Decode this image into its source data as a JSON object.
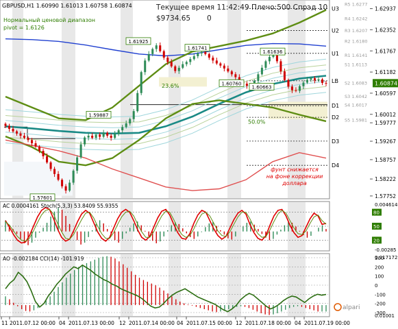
{
  "header": {
    "symbol_line": "GBPUSD,H1  1.60990 1.61013 1.60758 1.60874",
    "range_label": "Нормальный ценовой диапазон",
    "pivot_label": "pivot = 1.6126",
    "server_info": "Текущее время 11:42:49 Плечо:500 Спрэд 10",
    "balance": "$9734.65",
    "zero": "0"
  },
  "colors": {
    "bull_candle": "#2e8b57",
    "bear_candle": "#d00000",
    "ma_blue": "#2040d0",
    "ma_teal": "#1a8a86",
    "ma_olive": "#5e8d13",
    "ma_red": "#e05050",
    "band_light": "#9fd6dc",
    "band_olive_light": "#b8d29a",
    "current_price_bg": "#2e7d00",
    "zone_fill": "#f3f0d2",
    "annotation_red": "#e00000",
    "stoch_main": "#e00000",
    "stoch_signal": "#5e8d13",
    "cci_line": "#2c6e12",
    "hist_up": "#2e8b57",
    "hist_down": "#d00000"
  },
  "chart_data": [
    {
      "type": "candlestick",
      "symbol": "GBPUSD",
      "timeframe": "H1",
      "ohlc": {
        "open": 1.6099,
        "high": 1.61013,
        "low": 1.60758,
        "close": 1.60874
      },
      "price_axis": {
        "ticks": [
          "1.62937",
          "1.62352",
          "1.61767",
          "1.61182",
          "1.60874",
          "1.60597",
          "1.60012",
          "1.59777",
          "1.59267",
          "1.58757",
          "1.58222",
          "1.57752"
        ],
        "current_price": "1.60874"
      },
      "ylim": [
        1.5775,
        1.631
      ],
      "pivot_levels": [
        {
          "label": "U3",
          "price": 1.6294
        },
        {
          "label": "U2",
          "price": 1.6233
        },
        {
          "label": "U1",
          "price": 1.617
        },
        {
          "label": "LB",
          "price": 1.6094
        },
        {
          "label": "D1",
          "price": 1.6025
        },
        {
          "label": "D2",
          "price": 1.5993
        },
        {
          "label": "D3",
          "price": 1.5927
        },
        {
          "label": "D4",
          "price": 1.586
        }
      ],
      "pivot_point_labels": [
        {
          "label": "R5 1.6277",
          "price": 1.6305
        },
        {
          "label": "R4 1.6242",
          "price": 1.6265
        },
        {
          "label": "R3 1.6207",
          "price": 1.6232
        },
        {
          "label": "R2 1.6180",
          "price": 1.6203
        },
        {
          "label": "R1 1.6141",
          "price": 1.6164
        },
        {
          "label": "S1 1.6113",
          "price": 1.6138
        },
        {
          "label": "S2 1.6083",
          "price": 1.6087
        },
        {
          "label": "S3 1.6042",
          "price": 1.605
        },
        {
          "label": "S4 1.6017",
          "price": 1.6026
        },
        {
          "label": "S5 1.5981",
          "price": 1.5985
        }
      ],
      "price_labels": [
        {
          "text": "1.61925",
          "price": 1.61925
        },
        {
          "text": "1.61741",
          "price": 1.61741
        },
        {
          "text": "1.61636",
          "price": 1.61636
        },
        {
          "text": "1.60760",
          "price": 1.6076
        },
        {
          "text": "1.60663",
          "price": 1.60663
        },
        {
          "text": "1.59887",
          "price": 1.59887
        },
        {
          "text": "1.57601",
          "price": 1.57601
        }
      ],
      "fib_labels": [
        {
          "text": "23.6%",
          "price": 1.609
        },
        {
          "text": "50.0%",
          "price": 1.599
        }
      ],
      "annotation": [
        "фунт снижается",
        "на фоне коррекции",
        "доллара"
      ],
      "closes": [
        1.5969,
        1.5961,
        1.5954,
        1.5948,
        1.5942,
        1.5936,
        1.593,
        1.5921,
        1.5912,
        1.59,
        1.5885,
        1.5868,
        1.585,
        1.5836,
        1.582,
        1.5802,
        1.579,
        1.5812,
        1.5845,
        1.5882,
        1.5918,
        1.5937,
        1.5942,
        1.5936,
        1.5945,
        1.5939,
        1.595,
        1.5942,
        1.5936,
        1.5947,
        1.5957,
        1.5966,
        1.5976,
        1.5988,
        1.601,
        1.606,
        1.6118,
        1.615,
        1.6168,
        1.6182,
        1.6192,
        1.6176,
        1.6158,
        1.6146,
        1.6134,
        1.6121,
        1.613,
        1.614,
        1.6146,
        1.6154,
        1.6162,
        1.617,
        1.6174,
        1.6168,
        1.6158,
        1.615,
        1.6142,
        1.6136,
        1.6128,
        1.612,
        1.6112,
        1.6104,
        1.6093,
        1.6086,
        1.608,
        1.6076,
        1.6094,
        1.6112,
        1.613,
        1.6148,
        1.616,
        1.6164,
        1.6148,
        1.612,
        1.6096,
        1.6078,
        1.6068,
        1.6066,
        1.6079,
        1.6089,
        1.6097,
        1.6101,
        1.6095,
        1.6098,
        1.6088,
        1.6087
      ],
      "moving_averages": [
        {
          "color": "ma_blue",
          "values": [
            1.621,
            1.6208,
            1.6203,
            1.6193,
            1.618,
            1.6168,
            1.6163,
            1.6168,
            1.618,
            1.6192,
            1.6197,
            1.6196,
            1.619
          ]
        },
        {
          "color": "ma_teal",
          "values": [
            1.5968,
            1.5962,
            1.5955,
            1.595,
            1.5948,
            1.595,
            1.5968,
            1.5995,
            1.603,
            1.6062,
            1.6085,
            1.61,
            1.6108
          ]
        },
        {
          "color": "ma_olive",
          "values": [
            1.605,
            1.602,
            1.599,
            1.5985,
            1.602,
            1.608,
            1.614,
            1.6175,
            1.619,
            1.6205,
            1.6225,
            1.6255,
            1.629
          ]
        },
        {
          "color": "ma_olive",
          "values": [
            1.594,
            1.591,
            1.587,
            1.586,
            1.588,
            1.593,
            1.599,
            1.603,
            1.604,
            1.603,
            1.602,
            1.6,
            1.5982
          ]
        },
        {
          "color": "ma_red",
          "values": [
            1.593,
            1.5915,
            1.59,
            1.588,
            1.585,
            1.5825,
            1.58,
            1.579,
            1.5795,
            1.582,
            1.587,
            1.5895,
            1.588
          ]
        }
      ]
    },
    {
      "type": "oscillator",
      "header": "AC 0.0004161  Stoch(5,3,3) 53.8409 55.9355",
      "axis_labels": [
        "0.004614",
        "80",
        "50",
        "20",
        "-0.00285"
      ],
      "levels": [
        80,
        50,
        20
      ],
      "ac_values": [
        0.0018,
        0.0011,
        0.0004,
        -0.0004,
        -0.0012,
        -0.0019,
        -0.0022,
        -0.0018,
        -0.001,
        -0.0002,
        0.0006,
        0.0014,
        0.0024,
        0.0032,
        0.0038,
        0.0035,
        0.0025,
        0.0012,
        -0.0002,
        -0.0014,
        -0.0021,
        -0.0018,
        -0.0009,
        0.0002,
        0.0012,
        0.0018,
        0.0013,
        0.0004,
        -0.0006,
        -0.0014,
        -0.0018,
        -0.0012,
        -0.0003,
        0.0006,
        0.0013,
        0.0016,
        0.001,
        0.0001,
        -0.0008,
        -0.0015,
        -0.0019,
        -0.0016,
        -0.0008,
        0.0002,
        0.001,
        0.0015,
        0.0012,
        0.0005,
        -0.0003,
        -0.0009,
        -0.0012,
        -0.0008,
        -0.0001,
        0.0007,
        0.0013,
        0.0015,
        0.0009,
        0.0002,
        -0.0005,
        -0.0011,
        -0.0013,
        -0.0008,
        0.0,
        0.0008,
        0.0014,
        0.0016,
        0.0011,
        0.0004,
        -0.0004,
        -0.001,
        -0.0014,
        -0.0012,
        -0.0005,
        0.0003,
        0.001,
        0.0015,
        0.0014,
        0.0008,
        0.0001,
        -0.0006,
        -0.001,
        -0.0007,
        0.0,
        0.0006,
        0.001,
        0.0004
      ],
      "stoch_main": [
        62,
        48,
        32,
        20,
        14,
        16,
        30,
        50,
        70,
        84,
        90,
        86,
        66,
        44,
        26,
        18,
        22,
        40,
        60,
        76,
        84,
        78,
        58,
        38,
        24,
        18,
        26,
        46,
        66,
        80,
        86,
        80,
        62,
        42,
        26,
        20,
        28,
        48,
        68,
        82,
        86,
        74,
        54,
        36,
        24,
        22,
        34,
        56,
        74,
        84,
        80,
        62,
        44,
        30,
        22,
        28,
        46,
        64,
        78,
        84,
        76,
        54,
        36,
        24,
        20,
        30,
        52,
        72,
        84,
        86,
        72,
        52,
        36,
        26,
        30,
        48,
        66,
        78,
        72,
        54,
        56
      ],
      "stoch_signal": [
        60,
        52,
        40,
        28,
        20,
        18,
        24,
        40,
        58,
        74,
        84,
        86,
        76,
        56,
        38,
        24,
        22,
        32,
        48,
        64,
        78,
        80,
        68,
        50,
        34,
        24,
        24,
        36,
        54,
        70,
        80,
        82,
        72,
        54,
        38,
        26,
        26,
        38,
        56,
        72,
        82,
        80,
        64,
        46,
        32,
        26,
        30,
        44,
        62,
        76,
        80,
        72,
        56,
        40,
        30,
        28,
        38,
        54,
        70,
        80,
        80,
        66,
        48,
        34,
        26,
        28,
        42,
        60,
        76,
        84,
        78,
        62,
        46,
        34,
        32,
        40,
        56,
        70,
        74,
        62,
        54
      ]
    },
    {
      "type": "oscillator",
      "header": "AO -0.002184  CCI(14) -101.919",
      "axis_labels": [
        "0.017172",
        "300",
        "200",
        "100",
        "0",
        "-100",
        "-200",
        "-300",
        "0.01001"
      ],
      "levels": [
        300,
        200,
        100,
        0,
        -100,
        -200,
        -300
      ],
      "ao_values": [
        0.003,
        0.002,
        0.0008,
        -0.0004,
        -0.0014,
        -0.002,
        -0.0022,
        -0.0018,
        -0.001,
        0.0002,
        0.0016,
        0.003,
        0.0046,
        0.0062,
        0.0078,
        0.0094,
        0.0108,
        0.012,
        0.013,
        0.0138,
        0.0144,
        0.015,
        0.0156,
        0.0162,
        0.0166,
        0.0168,
        0.0166,
        0.016,
        0.015,
        0.014,
        0.0128,
        0.0116,
        0.0104,
        0.0094,
        0.0086,
        0.008,
        0.0074,
        0.0068,
        0.006,
        0.005,
        0.004,
        0.003,
        0.002,
        0.0012,
        0.0006,
        0.0002,
        -0.0002,
        -0.0006,
        -0.001,
        -0.0014,
        -0.0018,
        -0.0022,
        -0.0024,
        -0.0022,
        -0.0018,
        -0.0014,
        -0.001,
        -0.0006,
        -0.0004,
        -0.0006,
        -0.001,
        -0.0016,
        -0.0022,
        -0.0028,
        -0.0032,
        -0.0034,
        -0.0032,
        -0.0028,
        -0.0022,
        -0.0016,
        -0.001,
        -0.0006,
        -0.0004,
        -0.0006,
        -0.001,
        -0.0014,
        -0.0018,
        -0.0022,
        -0.0022,
        -0.0022
      ],
      "cci": [
        -40,
        20,
        60,
        140,
        100,
        40,
        -60,
        -180,
        -240,
        -200,
        -120,
        -60,
        10,
        60,
        120,
        160,
        200,
        180,
        220,
        190,
        160,
        120,
        90,
        60,
        40,
        10,
        -10,
        -40,
        -60,
        -80,
        -100,
        -120,
        -150,
        -190,
        -230,
        -250,
        -240,
        -200,
        -150,
        -110,
        -80,
        -60,
        -40,
        -70,
        -100,
        -130,
        -150,
        -170,
        -190,
        -210,
        -240,
        -270,
        -290,
        -260,
        -220,
        -160,
        -120,
        -90,
        -110,
        -150,
        -190,
        -230,
        -260,
        -240,
        -210,
        -170,
        -140,
        -120,
        -130,
        -160,
        -190,
        -150,
        -120,
        -100,
        -110,
        -102
      ],
      "watermark": "alpari"
    }
  ],
  "time_axis": [
    "11",
    "2011.07.12 00:00",
    "04",
    "2011.07.13 00:00",
    "12",
    "2011.07.14 00:00",
    "04",
    "2011.07.15 00:00",
    "12",
    "2011.07.18 00:00",
    "04",
    "2011.07.19 00:00"
  ]
}
